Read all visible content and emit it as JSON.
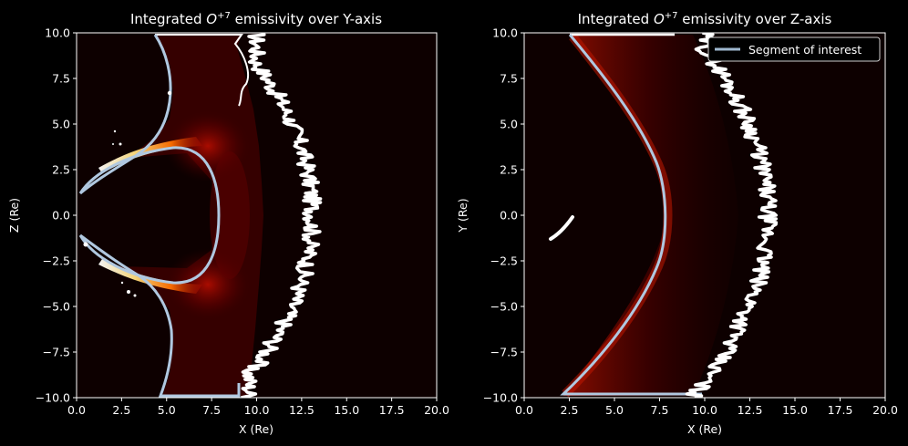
{
  "chart_data": [
    {
      "type": "heatmap",
      "title": "Integrated O+7 emissivity over Y-axis",
      "title_main": "Integrated ",
      "title_species": "O",
      "title_charge": "+7",
      "title_rest": " emissivity over Y-axis",
      "xlabel": "X (Re)",
      "ylabel": "Z (Re)",
      "xlim": [
        0,
        20
      ],
      "ylim": [
        -10,
        10
      ],
      "xticks": [
        "0.0",
        "2.5",
        "5.0",
        "7.5",
        "10.0",
        "12.5",
        "15.0",
        "17.5",
        "20.0"
      ],
      "yticks": [
        "10.0",
        "7.5",
        "5.0",
        "2.5",
        "0.0",
        "−2.5",
        "−5.0",
        "−7.5",
        "−10.0"
      ],
      "colormap": "hot",
      "background_color": "#0d0000",
      "contour_colors": [
        "#b0c8e0",
        "#ffffff"
      ],
      "legend": null
    },
    {
      "type": "heatmap",
      "title": "Integrated O+7 emissivity over Z-axis",
      "title_main": "Integrated ",
      "title_species": "O",
      "title_charge": "+7",
      "title_rest": " emissivity over Z-axis",
      "xlabel": "X (Re)",
      "ylabel": "Y (Re)",
      "xlim": [
        0,
        20
      ],
      "ylim": [
        -10,
        10
      ],
      "xticks": [
        "0.0",
        "2.5",
        "5.0",
        "7.5",
        "10.0",
        "12.5",
        "15.0",
        "17.5",
        "20.0"
      ],
      "yticks": [
        "10.0",
        "7.5",
        "5.0",
        "2.5",
        "0.0",
        "−2.5",
        "−5.0",
        "−7.5",
        "−10.0"
      ],
      "colormap": "hot",
      "background_color": "#0d0000",
      "contour_colors": [
        "#b0c8e0",
        "#ffffff"
      ],
      "legend": {
        "placement": "top-right",
        "entries": [
          "Segment of interest"
        ],
        "line_color": "#9fb8d0"
      }
    }
  ]
}
